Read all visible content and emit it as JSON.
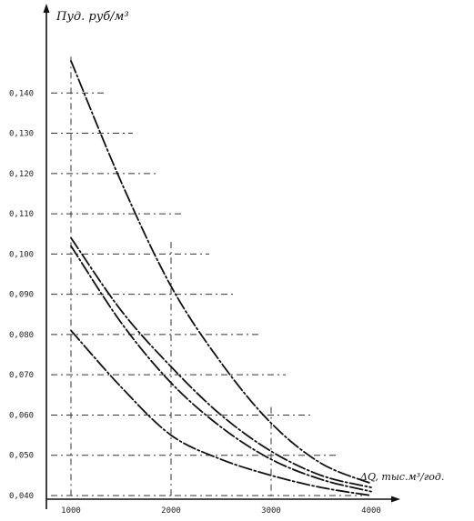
{
  "chart_data": {
    "type": "line",
    "title": "",
    "ylabel": "Пуд. руб/м³",
    "xlabel": "ΔQ, тыс.м³/год.",
    "xlim": [
      1000,
      4000
    ],
    "ylim": [
      0.04,
      0.15
    ],
    "x_ticks": [
      {
        "value": 1000,
        "label": "1000"
      },
      {
        "value": 2000,
        "label": "2000"
      },
      {
        "value": 3000,
        "label": "3000"
      },
      {
        "value": 4000,
        "label": "4000"
      }
    ],
    "y_ticks": [
      {
        "value": 0.14,
        "label": "0,140"
      },
      {
        "value": 0.13,
        "label": "0,130"
      },
      {
        "value": 0.12,
        "label": "0,120"
      },
      {
        "value": 0.11,
        "label": "0,110"
      },
      {
        "value": 0.1,
        "label": "0,100"
      },
      {
        "value": 0.09,
        "label": "0,090"
      },
      {
        "value": 0.08,
        "label": "0,080"
      },
      {
        "value": 0.07,
        "label": "0,070"
      },
      {
        "value": 0.06,
        "label": "0,060"
      },
      {
        "value": 0.05,
        "label": "0,050"
      },
      {
        "value": 0.04,
        "label": "0,040"
      }
    ],
    "grid": true,
    "series": [
      {
        "x": [
          1000,
          1500,
          2000,
          2500,
          3000,
          3500,
          4000
        ],
        "values": [
          0.148,
          0.118,
          0.092,
          0.073,
          0.058,
          0.048,
          0.043
        ]
      },
      {
        "x": [
          1000,
          1500,
          2000,
          2500,
          3000,
          3500,
          4000
        ],
        "values": [
          0.104,
          0.086,
          0.072,
          0.06,
          0.051,
          0.045,
          0.042
        ]
      },
      {
        "x": [
          1000,
          1500,
          2000,
          2500,
          3000,
          3500,
          4000
        ],
        "values": [
          0.102,
          0.083,
          0.068,
          0.057,
          0.049,
          0.044,
          0.041
        ]
      },
      {
        "x": [
          1000,
          1500,
          2000,
          2500,
          3000,
          3500,
          4000
        ],
        "values": [
          0.081,
          0.067,
          0.055,
          0.049,
          0.045,
          0.042,
          0.04
        ]
      }
    ]
  }
}
